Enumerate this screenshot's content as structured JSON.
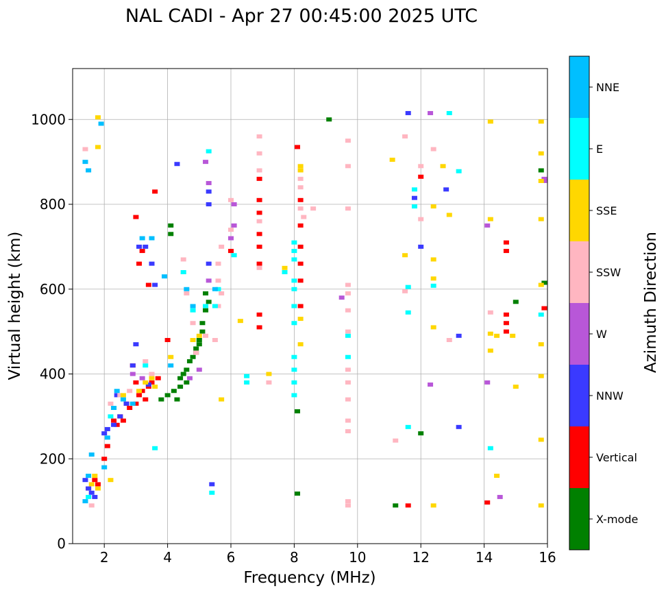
{
  "chart_data": {
    "type": "scatter",
    "title": "NAL CADI - Apr 27 00:45:00 2025 UTC",
    "xlabel": "Frequency (MHz)",
    "ylabel": "Virtual height (km)",
    "xlim": [
      1,
      16
    ],
    "ylim": [
      0,
      1120
    ],
    "xticks": [
      2,
      4,
      6,
      8,
      10,
      12,
      14,
      16
    ],
    "yticks": [
      0,
      200,
      400,
      600,
      800,
      1000
    ],
    "grid": true,
    "colorbar": {
      "title": "Azimuth Direction",
      "categories": [
        {
          "name": "X-mode",
          "color": "#008000"
        },
        {
          "name": "Vertical",
          "color": "#ff0000"
        },
        {
          "name": "NNW",
          "color": "#3a3aff"
        },
        {
          "name": "W",
          "color": "#b857d8"
        },
        {
          "name": "SSW",
          "color": "#ffb6c1"
        },
        {
          "name": "SSE",
          "color": "#ffd700"
        },
        {
          "name": "E",
          "color": "#00ffff"
        },
        {
          "name": "NNE",
          "color": "#00bfff"
        }
      ]
    },
    "series": [
      {
        "name": "X-mode",
        "points": [
          [
            4.1,
            750
          ],
          [
            4.1,
            730
          ],
          [
            3.8,
            340
          ],
          [
            4.0,
            350
          ],
          [
            4.2,
            360
          ],
          [
            4.4,
            390
          ],
          [
            4.6,
            410
          ],
          [
            4.7,
            430
          ],
          [
            4.8,
            440
          ],
          [
            4.9,
            460
          ],
          [
            5.0,
            480
          ],
          [
            5.1,
            500
          ],
          [
            5.1,
            520
          ],
          [
            5.2,
            550
          ],
          [
            5.3,
            570
          ],
          [
            5.2,
            590
          ],
          [
            4.6,
            380
          ],
          [
            4.5,
            400
          ],
          [
            8.1,
            312
          ],
          [
            8.1,
            118
          ],
          [
            9.1,
            1000
          ],
          [
            11.2,
            90
          ],
          [
            12.0,
            260
          ],
          [
            15.0,
            570
          ],
          [
            15.8,
            880
          ],
          [
            15.9,
            615
          ],
          [
            4.3,
            340
          ],
          [
            4.4,
            370
          ],
          [
            4.9,
            450
          ],
          [
            5.0,
            470
          ]
        ]
      },
      {
        "name": "Vertical",
        "points": [
          [
            1.5,
            130
          ],
          [
            1.7,
            150
          ],
          [
            1.8,
            140
          ],
          [
            2.0,
            200
          ],
          [
            2.1,
            230
          ],
          [
            2.4,
            280
          ],
          [
            2.5,
            300
          ],
          [
            2.6,
            290
          ],
          [
            2.8,
            320
          ],
          [
            3.0,
            330
          ],
          [
            3.1,
            350
          ],
          [
            3.2,
            360
          ],
          [
            3.3,
            340
          ],
          [
            3.4,
            370
          ],
          [
            3.5,
            380
          ],
          [
            2.9,
            420
          ],
          [
            3.0,
            380
          ],
          [
            3.0,
            770
          ],
          [
            3.1,
            660
          ],
          [
            3.2,
            690
          ],
          [
            3.4,
            610
          ],
          [
            3.6,
            830
          ],
          [
            4.0,
            480
          ],
          [
            6.0,
            720
          ],
          [
            6.0,
            690
          ],
          [
            6.9,
            860
          ],
          [
            6.9,
            810
          ],
          [
            6.9,
            780
          ],
          [
            6.9,
            730
          ],
          [
            6.9,
            700
          ],
          [
            6.9,
            660
          ],
          [
            6.9,
            540
          ],
          [
            6.9,
            510
          ],
          [
            8.1,
            935
          ],
          [
            8.2,
            810
          ],
          [
            8.2,
            750
          ],
          [
            8.2,
            700
          ],
          [
            8.2,
            660
          ],
          [
            8.2,
            560
          ],
          [
            8.2,
            620
          ],
          [
            12.0,
            865
          ],
          [
            11.6,
            90
          ],
          [
            14.1,
            97
          ],
          [
            14.7,
            710
          ],
          [
            14.7,
            690
          ],
          [
            14.7,
            540
          ],
          [
            14.7,
            520
          ],
          [
            14.7,
            500
          ],
          [
            15.9,
            555
          ],
          [
            3.7,
            390
          ],
          [
            2.7,
            330
          ],
          [
            2.3,
            290
          ]
        ]
      },
      {
        "name": "NNW",
        "points": [
          [
            1.4,
            150
          ],
          [
            1.5,
            130
          ],
          [
            1.6,
            120
          ],
          [
            1.7,
            110
          ],
          [
            2.0,
            260
          ],
          [
            2.3,
            280
          ],
          [
            2.5,
            300
          ],
          [
            2.7,
            330
          ],
          [
            2.9,
            420
          ],
          [
            3.0,
            470
          ],
          [
            3.1,
            700
          ],
          [
            3.3,
            700
          ],
          [
            3.5,
            660
          ],
          [
            3.6,
            610
          ],
          [
            4.3,
            895
          ],
          [
            5.3,
            830
          ],
          [
            5.3,
            800
          ],
          [
            5.3,
            660
          ],
          [
            5.4,
            140
          ],
          [
            11.6,
            1015
          ],
          [
            11.8,
            815
          ],
          [
            12.0,
            700
          ],
          [
            12.8,
            835
          ],
          [
            13.2,
            490
          ],
          [
            13.2,
            275
          ],
          [
            2.1,
            270
          ],
          [
            2.4,
            350
          ],
          [
            3.4,
            375
          ]
        ]
      },
      {
        "name": "W",
        "points": [
          [
            5.2,
            900
          ],
          [
            5.3,
            850
          ],
          [
            6.1,
            800
          ],
          [
            6.1,
            750
          ],
          [
            6.0,
            720
          ],
          [
            4.7,
            390
          ],
          [
            5.0,
            410
          ],
          [
            5.3,
            620
          ],
          [
            9.5,
            580
          ],
          [
            12.3,
            1015
          ],
          [
            12.3,
            375
          ],
          [
            14.1,
            750
          ],
          [
            14.1,
            380
          ],
          [
            14.5,
            110
          ],
          [
            15.9,
            855
          ],
          [
            15.9,
            860
          ],
          [
            2.9,
            400
          ],
          [
            3.2,
            390
          ]
        ]
      },
      {
        "name": "SSW",
        "points": [
          [
            1.4,
            930
          ],
          [
            1.6,
            90
          ],
          [
            2.2,
            330
          ],
          [
            2.5,
            350
          ],
          [
            2.8,
            360
          ],
          [
            3.3,
            430
          ],
          [
            3.5,
            400
          ],
          [
            4.5,
            670
          ],
          [
            4.5,
            640
          ],
          [
            4.6,
            590
          ],
          [
            4.8,
            520
          ],
          [
            4.9,
            450
          ],
          [
            5.2,
            490
          ],
          [
            5.5,
            480
          ],
          [
            5.6,
            560
          ],
          [
            5.7,
            590
          ],
          [
            5.6,
            620
          ],
          [
            5.6,
            660
          ],
          [
            5.7,
            700
          ],
          [
            6.0,
            810
          ],
          [
            6.0,
            740
          ],
          [
            6.9,
            960
          ],
          [
            6.9,
            920
          ],
          [
            6.9,
            880
          ],
          [
            6.9,
            760
          ],
          [
            6.9,
            650
          ],
          [
            7.2,
            380
          ],
          [
            8.2,
            880
          ],
          [
            8.2,
            860
          ],
          [
            8.2,
            840
          ],
          [
            8.2,
            790
          ],
          [
            8.3,
            770
          ],
          [
            8.6,
            790
          ],
          [
            9.7,
            950
          ],
          [
            9.7,
            890
          ],
          [
            9.7,
            790
          ],
          [
            9.7,
            610
          ],
          [
            9.7,
            590
          ],
          [
            9.7,
            550
          ],
          [
            9.7,
            500
          ],
          [
            9.7,
            410
          ],
          [
            9.7,
            380
          ],
          [
            9.7,
            340
          ],
          [
            9.7,
            290
          ],
          [
            9.7,
            265
          ],
          [
            9.7,
            100
          ],
          [
            9.7,
            90
          ],
          [
            11.2,
            243
          ],
          [
            11.5,
            595
          ],
          [
            11.5,
            960
          ],
          [
            12.0,
            890
          ],
          [
            12.0,
            765
          ],
          [
            12.4,
            930
          ],
          [
            12.9,
            480
          ],
          [
            14.2,
            545
          ]
        ]
      },
      {
        "name": "SSE",
        "points": [
          [
            1.6,
            140
          ],
          [
            1.7,
            160
          ],
          [
            1.8,
            130
          ],
          [
            2.2,
            150
          ],
          [
            2.3,
            320
          ],
          [
            2.6,
            350
          ],
          [
            3.1,
            360
          ],
          [
            3.3,
            380
          ],
          [
            3.5,
            390
          ],
          [
            3.6,
            370
          ],
          [
            4.1,
            440
          ],
          [
            4.8,
            480
          ],
          [
            5.0,
            490
          ],
          [
            5.7,
            340
          ],
          [
            6.3,
            525
          ],
          [
            7.2,
            400
          ],
          [
            7.7,
            650
          ],
          [
            8.2,
            880
          ],
          [
            8.2,
            890
          ],
          [
            8.2,
            530
          ],
          [
            8.2,
            470
          ],
          [
            11.1,
            905
          ],
          [
            11.5,
            680
          ],
          [
            12.4,
            795
          ],
          [
            12.4,
            670
          ],
          [
            12.4,
            625
          ],
          [
            12.4,
            510
          ],
          [
            12.4,
            90
          ],
          [
            12.7,
            890
          ],
          [
            12.9,
            775
          ],
          [
            14.2,
            995
          ],
          [
            14.2,
            765
          ],
          [
            14.2,
            495
          ],
          [
            14.2,
            455
          ],
          [
            14.4,
            490
          ],
          [
            14.9,
            490
          ],
          [
            15.0,
            370
          ],
          [
            14.4,
            160
          ],
          [
            15.8,
            995
          ],
          [
            15.8,
            920
          ],
          [
            15.8,
            855
          ],
          [
            15.8,
            765
          ],
          [
            15.8,
            610
          ],
          [
            15.8,
            470
          ],
          [
            15.8,
            395
          ],
          [
            15.8,
            245
          ],
          [
            15.8,
            90
          ],
          [
            1.8,
            1005
          ],
          [
            1.8,
            935
          ]
        ]
      },
      {
        "name": "E",
        "points": [
          [
            1.5,
            110
          ],
          [
            2.2,
            300
          ],
          [
            3.3,
            420
          ],
          [
            3.6,
            225
          ],
          [
            4.5,
            640
          ],
          [
            4.8,
            550
          ],
          [
            5.2,
            560
          ],
          [
            5.3,
            925
          ],
          [
            5.4,
            120
          ],
          [
            5.5,
            560
          ],
          [
            5.6,
            600
          ],
          [
            6.1,
            680
          ],
          [
            6.5,
            395
          ],
          [
            6.5,
            380
          ],
          [
            7.7,
            640
          ],
          [
            8.0,
            710
          ],
          [
            8.0,
            690
          ],
          [
            8.0,
            670
          ],
          [
            8.0,
            620
          ],
          [
            8.0,
            600
          ],
          [
            8.0,
            560
          ],
          [
            8.0,
            520
          ],
          [
            8.0,
            440
          ],
          [
            8.0,
            410
          ],
          [
            8.0,
            380
          ],
          [
            8.0,
            350
          ],
          [
            9.7,
            440
          ],
          [
            9.7,
            490
          ],
          [
            11.6,
            605
          ],
          [
            11.6,
            545
          ],
          [
            11.6,
            275
          ],
          [
            11.8,
            835
          ],
          [
            11.8,
            795
          ],
          [
            12.4,
            608
          ],
          [
            12.9,
            1015
          ],
          [
            13.2,
            878
          ],
          [
            14.2,
            225
          ],
          [
            15.8,
            540
          ]
        ]
      },
      {
        "name": "NNE",
        "points": [
          [
            1.4,
            900
          ],
          [
            1.5,
            880
          ],
          [
            1.4,
            100
          ],
          [
            1.5,
            160
          ],
          [
            1.9,
            990
          ],
          [
            2.0,
            180
          ],
          [
            2.1,
            250
          ],
          [
            2.3,
            320
          ],
          [
            2.9,
            330
          ],
          [
            3.2,
            720
          ],
          [
            3.5,
            720
          ],
          [
            3.9,
            630
          ],
          [
            4.1,
            420
          ],
          [
            4.6,
            600
          ],
          [
            4.8,
            560
          ],
          [
            5.5,
            600
          ],
          [
            1.6,
            210
          ],
          [
            2.4,
            360
          ],
          [
            2.6,
            340
          ]
        ]
      }
    ]
  }
}
